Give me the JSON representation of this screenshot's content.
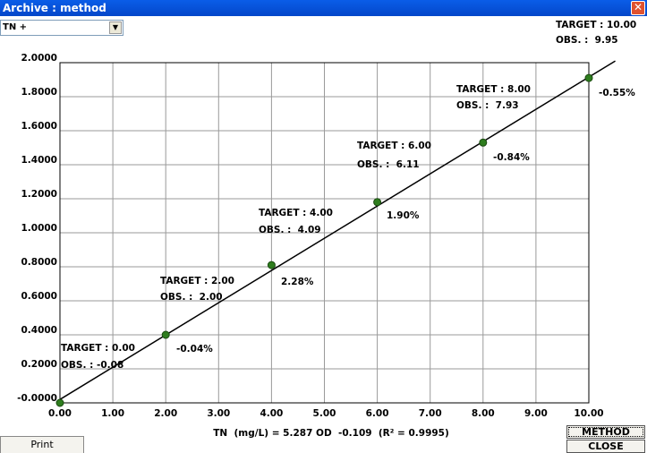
{
  "window": {
    "title": "Archive : method",
    "selector": "TN +",
    "buttons": {
      "print": "Print",
      "method": "METHOD",
      "close": "CLOSE"
    }
  },
  "chart_data": {
    "type": "scatter",
    "x_label": "TN  (mg/L) = 5.287 OD  -0.109  (R² = 0.9995)",
    "x": [
      0,
      2,
      4,
      6,
      8,
      10
    ],
    "series": [
      {
        "color": "#2e7d1e",
        "values": [
          0.0,
          0.4,
          0.81,
          1.18,
          1.53,
          1.91
        ]
      }
    ],
    "fit_line": {
      "x": [
        0,
        10.5
      ],
      "values": [
        0.02,
        2.01
      ],
      "color": "#000000"
    },
    "targets": [
      "TARGET : 0.00",
      "TARGET : 2.00",
      "TARGET : 4.00",
      "TARGET : 6.00",
      "TARGET : 8.00",
      "TARGET : 10.00"
    ],
    "observations": [
      "OBS. : -0.08",
      "OBS. :  2.00",
      "OBS. :  4.09",
      "OBS. :  6.11",
      "OBS. :  7.93",
      "OBS. :  9.95"
    ],
    "errors": [
      null,
      "-0.04%",
      "2.28%",
      "1.90%",
      "-0.84%",
      "-0.55%"
    ],
    "xlim": [
      0,
      10
    ],
    "ylim": [
      0,
      2
    ],
    "xticks": [
      {
        "value": 0,
        "label": "0.00"
      },
      {
        "value": 1,
        "label": "1.00"
      },
      {
        "value": 2,
        "label": "2.00"
      },
      {
        "value": 3,
        "label": "3.00"
      },
      {
        "value": 4,
        "label": "4.00"
      },
      {
        "value": 5,
        "label": "5.00"
      },
      {
        "value": 6,
        "label": "6.00"
      },
      {
        "value": 7,
        "label": "7.00"
      },
      {
        "value": 8,
        "label": "8.00"
      },
      {
        "value": 9,
        "label": "9.00"
      },
      {
        "value": 10,
        "label": "10.00"
      }
    ],
    "yticks": [
      {
        "value": 0,
        "label": "-0.0000"
      },
      {
        "value": 0.2,
        "label": "0.2000"
      },
      {
        "value": 0.4,
        "label": "0.4000"
      },
      {
        "value": 0.6,
        "label": "0.6000"
      },
      {
        "value": 0.8,
        "label": "0.8000"
      },
      {
        "value": 1.0,
        "label": "1.0000"
      },
      {
        "value": 1.2,
        "label": "1.2000"
      },
      {
        "value": 1.4,
        "label": "1.4000"
      },
      {
        "value": 1.6,
        "label": "1.6000"
      },
      {
        "value": 1.8,
        "label": "1.8000"
      },
      {
        "value": 2.0,
        "label": "2.0000"
      }
    ],
    "grid": true
  }
}
